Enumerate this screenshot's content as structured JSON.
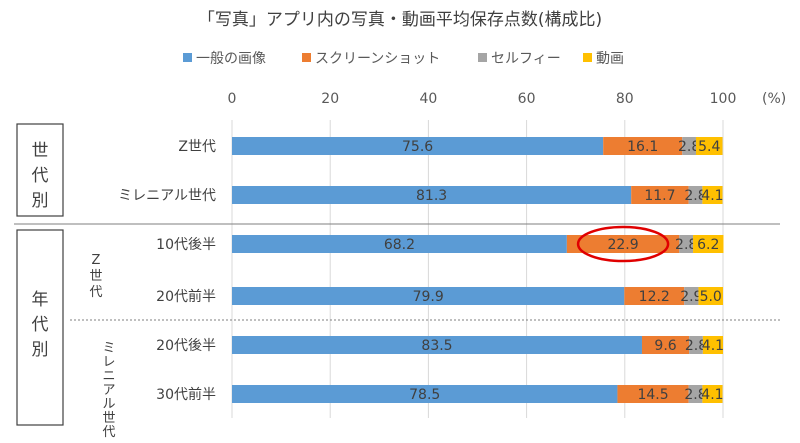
{
  "chart_data": {
    "type": "bar",
    "stacked": true,
    "orientation": "horizontal",
    "title": "「写真」アプリ内の写真・動画平均保存点数(構成比)",
    "unit": "(%)",
    "xlim": [
      0,
      100
    ],
    "x_ticks": [
      "0",
      "20",
      "40",
      "60",
      "80",
      "100"
    ],
    "legend_position": "top",
    "series": [
      {
        "name": "一般の画像",
        "color": "#5b9bd5",
        "values": [
          75.6,
          81.3,
          68.2,
          79.9,
          83.5,
          78.5
        ],
        "labels": [
          "75.6",
          "81.3",
          "68.2",
          "79.9",
          "83.5",
          "78.5"
        ]
      },
      {
        "name": "スクリーンショット",
        "color": "#ed7d31",
        "values": [
          16.1,
          11.7,
          22.9,
          12.2,
          9.6,
          14.5
        ],
        "labels": [
          "16.1",
          "11.7",
          "22.9",
          "12.2",
          "9.6",
          "14.5"
        ]
      },
      {
        "name": "セルフィー",
        "color": "#a5a5a5",
        "values": [
          2.8,
          2.8,
          2.8,
          2.9,
          2.8,
          2.8
        ],
        "labels": [
          "2.8",
          "2.8",
          "2.8",
          "2.9",
          "2.8",
          "2.8"
        ]
      },
      {
        "name": "動画",
        "color": "#ffc000",
        "values": [
          5.4,
          4.1,
          6.2,
          5.0,
          4.1,
          4.1
        ],
        "labels": [
          "5.4",
          "4.1",
          "6.2",
          "5.0",
          "4.1",
          "4.1"
        ]
      }
    ],
    "categories": [
      "Z世代",
      "ミレニアル世代",
      "10代後半",
      "20代前半",
      "20代後半",
      "30代前半"
    ],
    "groups": [
      {
        "label": "世代別",
        "categories": [
          "Z世代",
          "ミレニアル世代"
        ]
      },
      {
        "label": "年代別",
        "categories": [
          "10代後半",
          "20代前半",
          "20代後半",
          "30代前半"
        ]
      }
    ],
    "subgroups": [
      {
        "label": "Z世代",
        "categories": [
          "10代後半",
          "20代前半"
        ]
      },
      {
        "label": "ミレニアル世代",
        "categories": [
          "20代後半",
          "30代前半"
        ]
      }
    ],
    "highlight": {
      "category": "10代後半",
      "series": "スクリーンショット",
      "color": "#e00000"
    },
    "grid": "vertical"
  }
}
